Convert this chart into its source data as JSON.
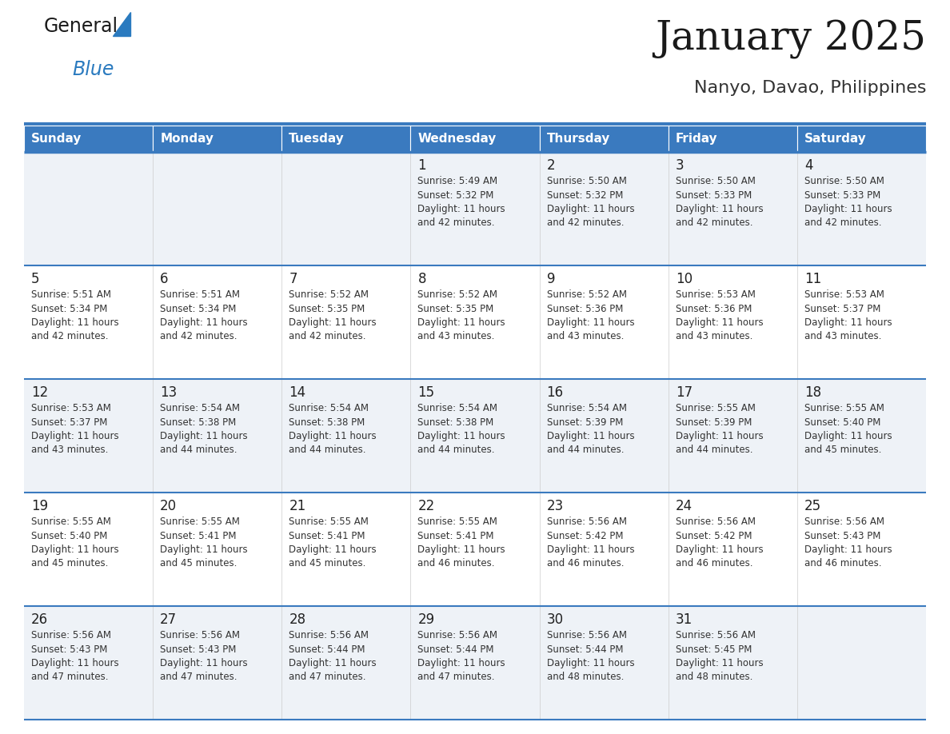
{
  "title": "January 2025",
  "subtitle": "Nanyo, Davao, Philippines",
  "days_of_week": [
    "Sunday",
    "Monday",
    "Tuesday",
    "Wednesday",
    "Thursday",
    "Friday",
    "Saturday"
  ],
  "header_bg": "#3a7abf",
  "header_text": "#ffffff",
  "row_bg_odd": "#eef2f7",
  "row_bg_even": "#ffffff",
  "separator_color": "#3a7abf",
  "cell_text_color": "#333333",
  "day_num_color": "#222222",
  "logo_general_color": "#222222",
  "logo_blue_color": "#2a7abf",
  "logo_triangle_color": "#2a7abf",
  "calendar": [
    [
      null,
      null,
      null,
      {
        "day": 1,
        "sunrise": "5:49 AM",
        "sunset": "5:32 PM",
        "daylight": "11 hours\nand 42 minutes."
      },
      {
        "day": 2,
        "sunrise": "5:50 AM",
        "sunset": "5:32 PM",
        "daylight": "11 hours\nand 42 minutes."
      },
      {
        "day": 3,
        "sunrise": "5:50 AM",
        "sunset": "5:33 PM",
        "daylight": "11 hours\nand 42 minutes."
      },
      {
        "day": 4,
        "sunrise": "5:50 AM",
        "sunset": "5:33 PM",
        "daylight": "11 hours\nand 42 minutes."
      }
    ],
    [
      {
        "day": 5,
        "sunrise": "5:51 AM",
        "sunset": "5:34 PM",
        "daylight": "11 hours\nand 42 minutes."
      },
      {
        "day": 6,
        "sunrise": "5:51 AM",
        "sunset": "5:34 PM",
        "daylight": "11 hours\nand 42 minutes."
      },
      {
        "day": 7,
        "sunrise": "5:52 AM",
        "sunset": "5:35 PM",
        "daylight": "11 hours\nand 42 minutes."
      },
      {
        "day": 8,
        "sunrise": "5:52 AM",
        "sunset": "5:35 PM",
        "daylight": "11 hours\nand 43 minutes."
      },
      {
        "day": 9,
        "sunrise": "5:52 AM",
        "sunset": "5:36 PM",
        "daylight": "11 hours\nand 43 minutes."
      },
      {
        "day": 10,
        "sunrise": "5:53 AM",
        "sunset": "5:36 PM",
        "daylight": "11 hours\nand 43 minutes."
      },
      {
        "day": 11,
        "sunrise": "5:53 AM",
        "sunset": "5:37 PM",
        "daylight": "11 hours\nand 43 minutes."
      }
    ],
    [
      {
        "day": 12,
        "sunrise": "5:53 AM",
        "sunset": "5:37 PM",
        "daylight": "11 hours\nand 43 minutes."
      },
      {
        "day": 13,
        "sunrise": "5:54 AM",
        "sunset": "5:38 PM",
        "daylight": "11 hours\nand 44 minutes."
      },
      {
        "day": 14,
        "sunrise": "5:54 AM",
        "sunset": "5:38 PM",
        "daylight": "11 hours\nand 44 minutes."
      },
      {
        "day": 15,
        "sunrise": "5:54 AM",
        "sunset": "5:38 PM",
        "daylight": "11 hours\nand 44 minutes."
      },
      {
        "day": 16,
        "sunrise": "5:54 AM",
        "sunset": "5:39 PM",
        "daylight": "11 hours\nand 44 minutes."
      },
      {
        "day": 17,
        "sunrise": "5:55 AM",
        "sunset": "5:39 PM",
        "daylight": "11 hours\nand 44 minutes."
      },
      {
        "day": 18,
        "sunrise": "5:55 AM",
        "sunset": "5:40 PM",
        "daylight": "11 hours\nand 45 minutes."
      }
    ],
    [
      {
        "day": 19,
        "sunrise": "5:55 AM",
        "sunset": "5:40 PM",
        "daylight": "11 hours\nand 45 minutes."
      },
      {
        "day": 20,
        "sunrise": "5:55 AM",
        "sunset": "5:41 PM",
        "daylight": "11 hours\nand 45 minutes."
      },
      {
        "day": 21,
        "sunrise": "5:55 AM",
        "sunset": "5:41 PM",
        "daylight": "11 hours\nand 45 minutes."
      },
      {
        "day": 22,
        "sunrise": "5:55 AM",
        "sunset": "5:41 PM",
        "daylight": "11 hours\nand 46 minutes."
      },
      {
        "day": 23,
        "sunrise": "5:56 AM",
        "sunset": "5:42 PM",
        "daylight": "11 hours\nand 46 minutes."
      },
      {
        "day": 24,
        "sunrise": "5:56 AM",
        "sunset": "5:42 PM",
        "daylight": "11 hours\nand 46 minutes."
      },
      {
        "day": 25,
        "sunrise": "5:56 AM",
        "sunset": "5:43 PM",
        "daylight": "11 hours\nand 46 minutes."
      }
    ],
    [
      {
        "day": 26,
        "sunrise": "5:56 AM",
        "sunset": "5:43 PM",
        "daylight": "11 hours\nand 47 minutes."
      },
      {
        "day": 27,
        "sunrise": "5:56 AM",
        "sunset": "5:43 PM",
        "daylight": "11 hours\nand 47 minutes."
      },
      {
        "day": 28,
        "sunrise": "5:56 AM",
        "sunset": "5:44 PM",
        "daylight": "11 hours\nand 47 minutes."
      },
      {
        "day": 29,
        "sunrise": "5:56 AM",
        "sunset": "5:44 PM",
        "daylight": "11 hours\nand 47 minutes."
      },
      {
        "day": 30,
        "sunrise": "5:56 AM",
        "sunset": "5:44 PM",
        "daylight": "11 hours\nand 48 minutes."
      },
      {
        "day": 31,
        "sunrise": "5:56 AM",
        "sunset": "5:45 PM",
        "daylight": "11 hours\nand 48 minutes."
      },
      null
    ]
  ]
}
